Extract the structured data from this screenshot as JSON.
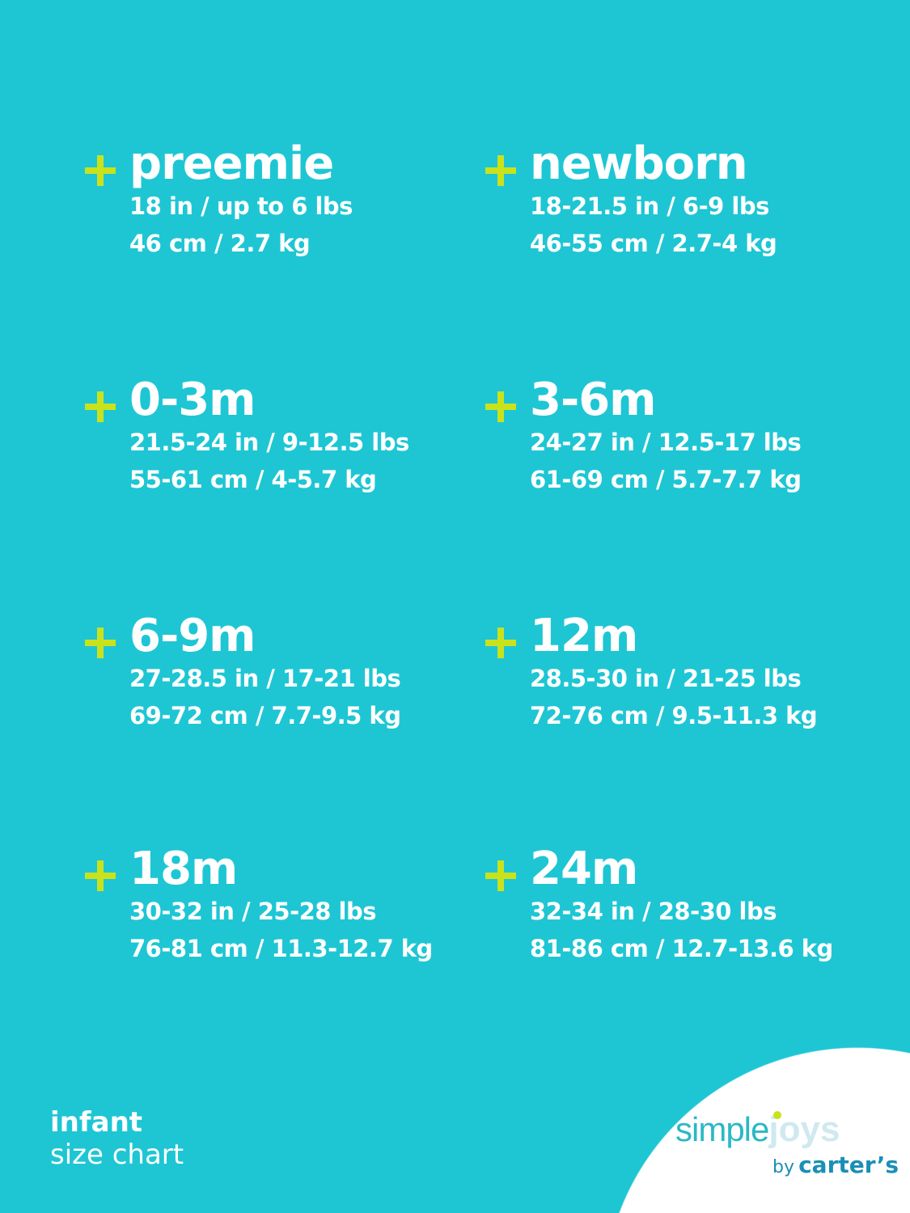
{
  "sizes": [
    {
      "name": "preemie",
      "imperial": "18 in / up to 6 lbs",
      "metric": "46 cm / 2.7 kg"
    },
    {
      "name": "newborn",
      "imperial": "18-21.5 in / 6-9 lbs",
      "metric": "46-55 cm / 2.7-4 kg"
    },
    {
      "name": "0-3m",
      "imperial": "21.5-24 in / 9-12.5 lbs",
      "metric": "55-61 cm / 4-5.7 kg"
    },
    {
      "name": "3-6m",
      "imperial": "24-27 in / 12.5-17 lbs",
      "metric": "61-69 cm / 5.7-7.7 kg"
    },
    {
      "name": "6-9m",
      "imperial": "27-28.5 in / 17-21 lbs",
      "metric": "69-72 cm / 7.7-9.5 kg"
    },
    {
      "name": "12m",
      "imperial": "28.5-30 in / 21-25 lbs",
      "metric": "72-76 cm / 9.5-11.3 kg"
    },
    {
      "name": "18m",
      "imperial": "30-32 in / 25-28 lbs",
      "metric": "76-81 cm / 11.3-12.7 kg"
    },
    {
      "name": "24m",
      "imperial": "32-34 in / 28-30 lbs",
      "metric": "81-86 cm / 12.7-13.6 kg"
    }
  ],
  "footer": {
    "line1": "infant",
    "line2": "size chart"
  },
  "logo": {
    "simple": "simple",
    "joys": "joys",
    "by": "by",
    "brand": "carter’s"
  },
  "colors": {
    "background": "#1ec6d4",
    "plus": "#c9e21c",
    "text": "#ffffff"
  }
}
